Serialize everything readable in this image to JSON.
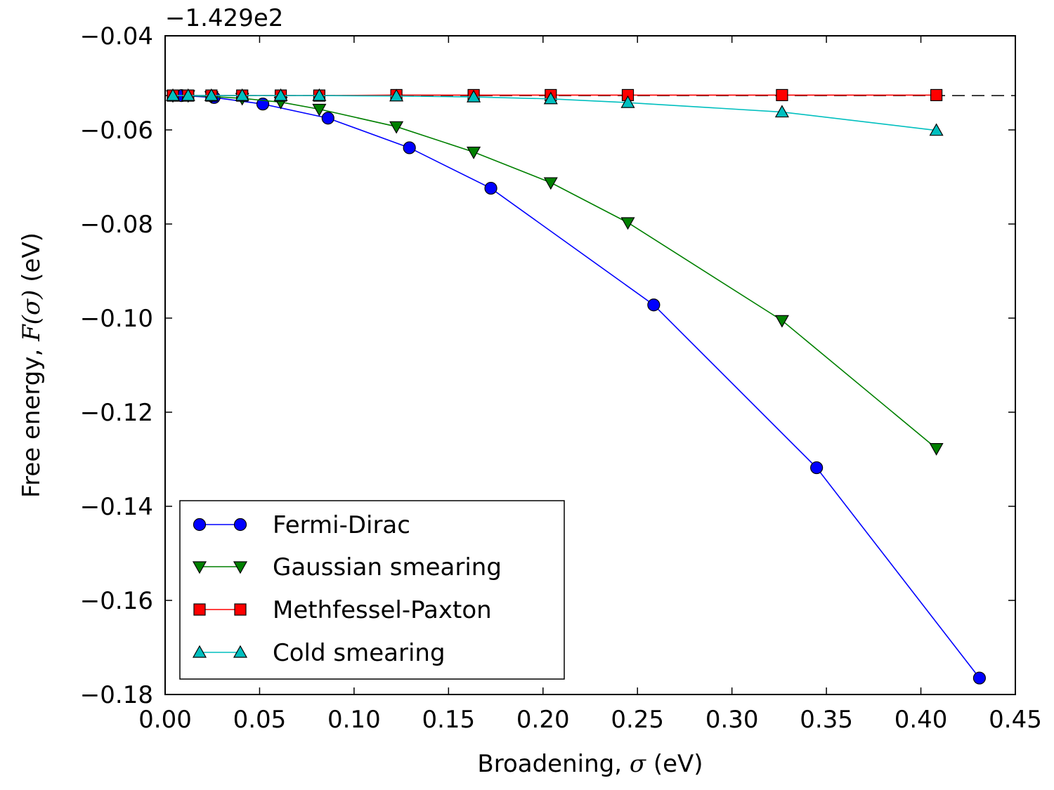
{
  "chart_data": {
    "type": "line",
    "xlabel_prefix": "Broadening, ",
    "xlabel_symbol": "σ",
    "xlabel_suffix": " (eV)",
    "ylabel_prefix": "Free energy, ",
    "ylabel_math": "F(σ)",
    "ylabel_suffix": " (eV)",
    "offset_text": "−1.429e2",
    "xlim": [
      0.0,
      0.45
    ],
    "ylim": [
      -0.18,
      -0.04
    ],
    "xticks": [
      0.0,
      0.05,
      0.1,
      0.15,
      0.2,
      0.25,
      0.3,
      0.35,
      0.4,
      0.45
    ],
    "xtick_labels": [
      "0.00",
      "0.05",
      "0.10",
      "0.15",
      "0.20",
      "0.25",
      "0.30",
      "0.35",
      "0.40",
      "0.45"
    ],
    "yticks": [
      -0.18,
      -0.16,
      -0.14,
      -0.12,
      -0.1,
      -0.08,
      -0.06,
      -0.04
    ],
    "ytick_labels": [
      "−0.18",
      "−0.16",
      "−0.14",
      "−0.12",
      "−0.10",
      "−0.08",
      "−0.06",
      "−0.04"
    ],
    "reference_line": {
      "y": -0.0527,
      "style": "dashed",
      "color": "#000000"
    },
    "legend_position": "lower-left",
    "grid": false,
    "series": [
      {
        "name": "Fermi-Dirac",
        "color": "#0000ff",
        "marker": "circle",
        "x": [
          0.0086,
          0.0259,
          0.0517,
          0.0862,
          0.1293,
          0.1724,
          0.2586,
          0.3448,
          0.431
        ],
        "y": [
          -0.0527,
          -0.0531,
          -0.0545,
          -0.0575,
          -0.0638,
          -0.0724,
          -0.0972,
          -0.1318,
          -0.1765
        ]
      },
      {
        "name": "Gaussian smearing",
        "color": "#008000",
        "marker": "triangle-down",
        "x": [
          0.0041,
          0.0122,
          0.0245,
          0.0408,
          0.0612,
          0.0816,
          0.1224,
          0.1633,
          0.2041,
          0.2449,
          0.3265,
          0.4082
        ],
        "y": [
          -0.0527,
          -0.0527,
          -0.0529,
          -0.0533,
          -0.0541,
          -0.0556,
          -0.0593,
          -0.0647,
          -0.0712,
          -0.0797,
          -0.1005,
          -0.1277
        ]
      },
      {
        "name": "Methfessel-Paxton",
        "color": "#ff0000",
        "marker": "square",
        "x": [
          0.0041,
          0.0122,
          0.0245,
          0.0408,
          0.0612,
          0.0816,
          0.1224,
          0.1633,
          0.2041,
          0.2449,
          0.3265,
          0.4082
        ],
        "y": [
          -0.0527,
          -0.0527,
          -0.0527,
          -0.0527,
          -0.0527,
          -0.0527,
          -0.0526,
          -0.0526,
          -0.0526,
          -0.0526,
          -0.0526,
          -0.0526
        ]
      },
      {
        "name": "Cold smearing",
        "color": "#00bfbf",
        "marker": "triangle-up",
        "x": [
          0.0041,
          0.0122,
          0.0245,
          0.0408,
          0.0612,
          0.0816,
          0.1224,
          0.1633,
          0.2041,
          0.2449,
          0.3265,
          0.4082
        ],
        "y": [
          -0.0527,
          -0.0527,
          -0.0527,
          -0.0527,
          -0.0527,
          -0.0527,
          -0.0528,
          -0.053,
          -0.0534,
          -0.0542,
          -0.0562,
          -0.0601
        ]
      }
    ]
  }
}
